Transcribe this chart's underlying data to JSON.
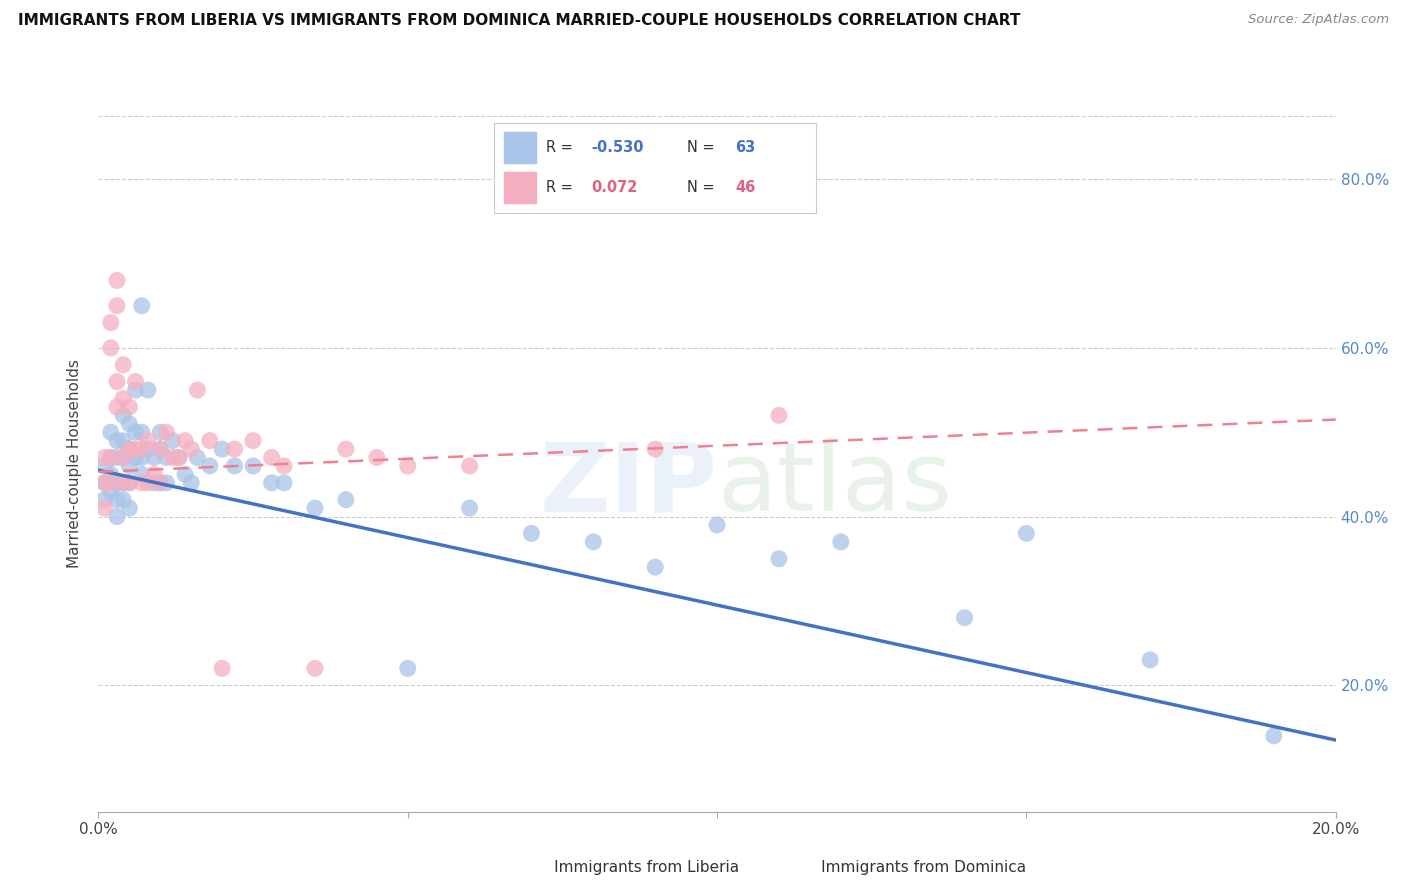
{
  "title": "IMMIGRANTS FROM LIBERIA VS IMMIGRANTS FROM DOMINICA MARRIED-COUPLE HOUSEHOLDS CORRELATION CHART",
  "source": "Source: ZipAtlas.com",
  "ylabel": "Married-couple Households",
  "liberia_R": -0.53,
  "liberia_N": 63,
  "dominica_R": 0.072,
  "dominica_N": 46,
  "liberia_color": "#a8c4e8",
  "dominica_color": "#f5afc0",
  "liberia_line_color": "#4472c4",
  "dominica_line_color": "#f08090",
  "x_min": 0.0,
  "x_max": 0.2,
  "y_min": 0.05,
  "y_max": 0.875,
  "yticks": [
    0.2,
    0.4,
    0.6,
    0.8
  ],
  "ytick_labels": [
    "20.0%",
    "40.0%",
    "60.0%",
    "80.0%"
  ],
  "liberia_x": [
    0.001,
    0.001,
    0.001,
    0.002,
    0.002,
    0.002,
    0.002,
    0.003,
    0.003,
    0.003,
    0.003,
    0.003,
    0.004,
    0.004,
    0.004,
    0.004,
    0.004,
    0.005,
    0.005,
    0.005,
    0.005,
    0.005,
    0.006,
    0.006,
    0.006,
    0.007,
    0.007,
    0.007,
    0.007,
    0.008,
    0.008,
    0.009,
    0.009,
    0.01,
    0.01,
    0.01,
    0.011,
    0.011,
    0.012,
    0.013,
    0.014,
    0.015,
    0.016,
    0.018,
    0.02,
    0.022,
    0.025,
    0.028,
    0.03,
    0.035,
    0.04,
    0.05,
    0.06,
    0.07,
    0.08,
    0.09,
    0.1,
    0.11,
    0.12,
    0.14,
    0.15,
    0.17,
    0.19
  ],
  "liberia_y": [
    0.46,
    0.44,
    0.42,
    0.5,
    0.47,
    0.45,
    0.43,
    0.49,
    0.47,
    0.44,
    0.42,
    0.4,
    0.52,
    0.49,
    0.47,
    0.44,
    0.42,
    0.51,
    0.48,
    0.46,
    0.44,
    0.41,
    0.55,
    0.5,
    0.47,
    0.65,
    0.5,
    0.47,
    0.45,
    0.55,
    0.48,
    0.47,
    0.44,
    0.5,
    0.48,
    0.44,
    0.47,
    0.44,
    0.49,
    0.47,
    0.45,
    0.44,
    0.47,
    0.46,
    0.48,
    0.46,
    0.46,
    0.44,
    0.44,
    0.41,
    0.42,
    0.22,
    0.41,
    0.38,
    0.37,
    0.34,
    0.39,
    0.35,
    0.37,
    0.28,
    0.38,
    0.23,
    0.14
  ],
  "dominica_x": [
    0.001,
    0.001,
    0.001,
    0.002,
    0.002,
    0.002,
    0.002,
    0.003,
    0.003,
    0.003,
    0.003,
    0.004,
    0.004,
    0.004,
    0.004,
    0.005,
    0.005,
    0.005,
    0.006,
    0.006,
    0.007,
    0.007,
    0.008,
    0.008,
    0.009,
    0.01,
    0.01,
    0.011,
    0.012,
    0.013,
    0.014,
    0.015,
    0.016,
    0.018,
    0.02,
    0.022,
    0.025,
    0.028,
    0.03,
    0.035,
    0.04,
    0.045,
    0.05,
    0.06,
    0.09,
    0.11
  ],
  "dominica_y": [
    0.47,
    0.44,
    0.41,
    0.63,
    0.6,
    0.47,
    0.44,
    0.68,
    0.65,
    0.56,
    0.53,
    0.58,
    0.54,
    0.47,
    0.44,
    0.53,
    0.48,
    0.44,
    0.56,
    0.48,
    0.48,
    0.44,
    0.49,
    0.44,
    0.45,
    0.48,
    0.44,
    0.5,
    0.47,
    0.47,
    0.49,
    0.48,
    0.55,
    0.49,
    0.22,
    0.48,
    0.49,
    0.47,
    0.46,
    0.22,
    0.48,
    0.47,
    0.46,
    0.46,
    0.48,
    0.52
  ],
  "liberia_trend_x": [
    0.0,
    0.2
  ],
  "liberia_trend_y": [
    0.455,
    0.135
  ],
  "dominica_trend_x": [
    0.0,
    0.2
  ],
  "dominica_trend_y": [
    0.453,
    0.515
  ]
}
